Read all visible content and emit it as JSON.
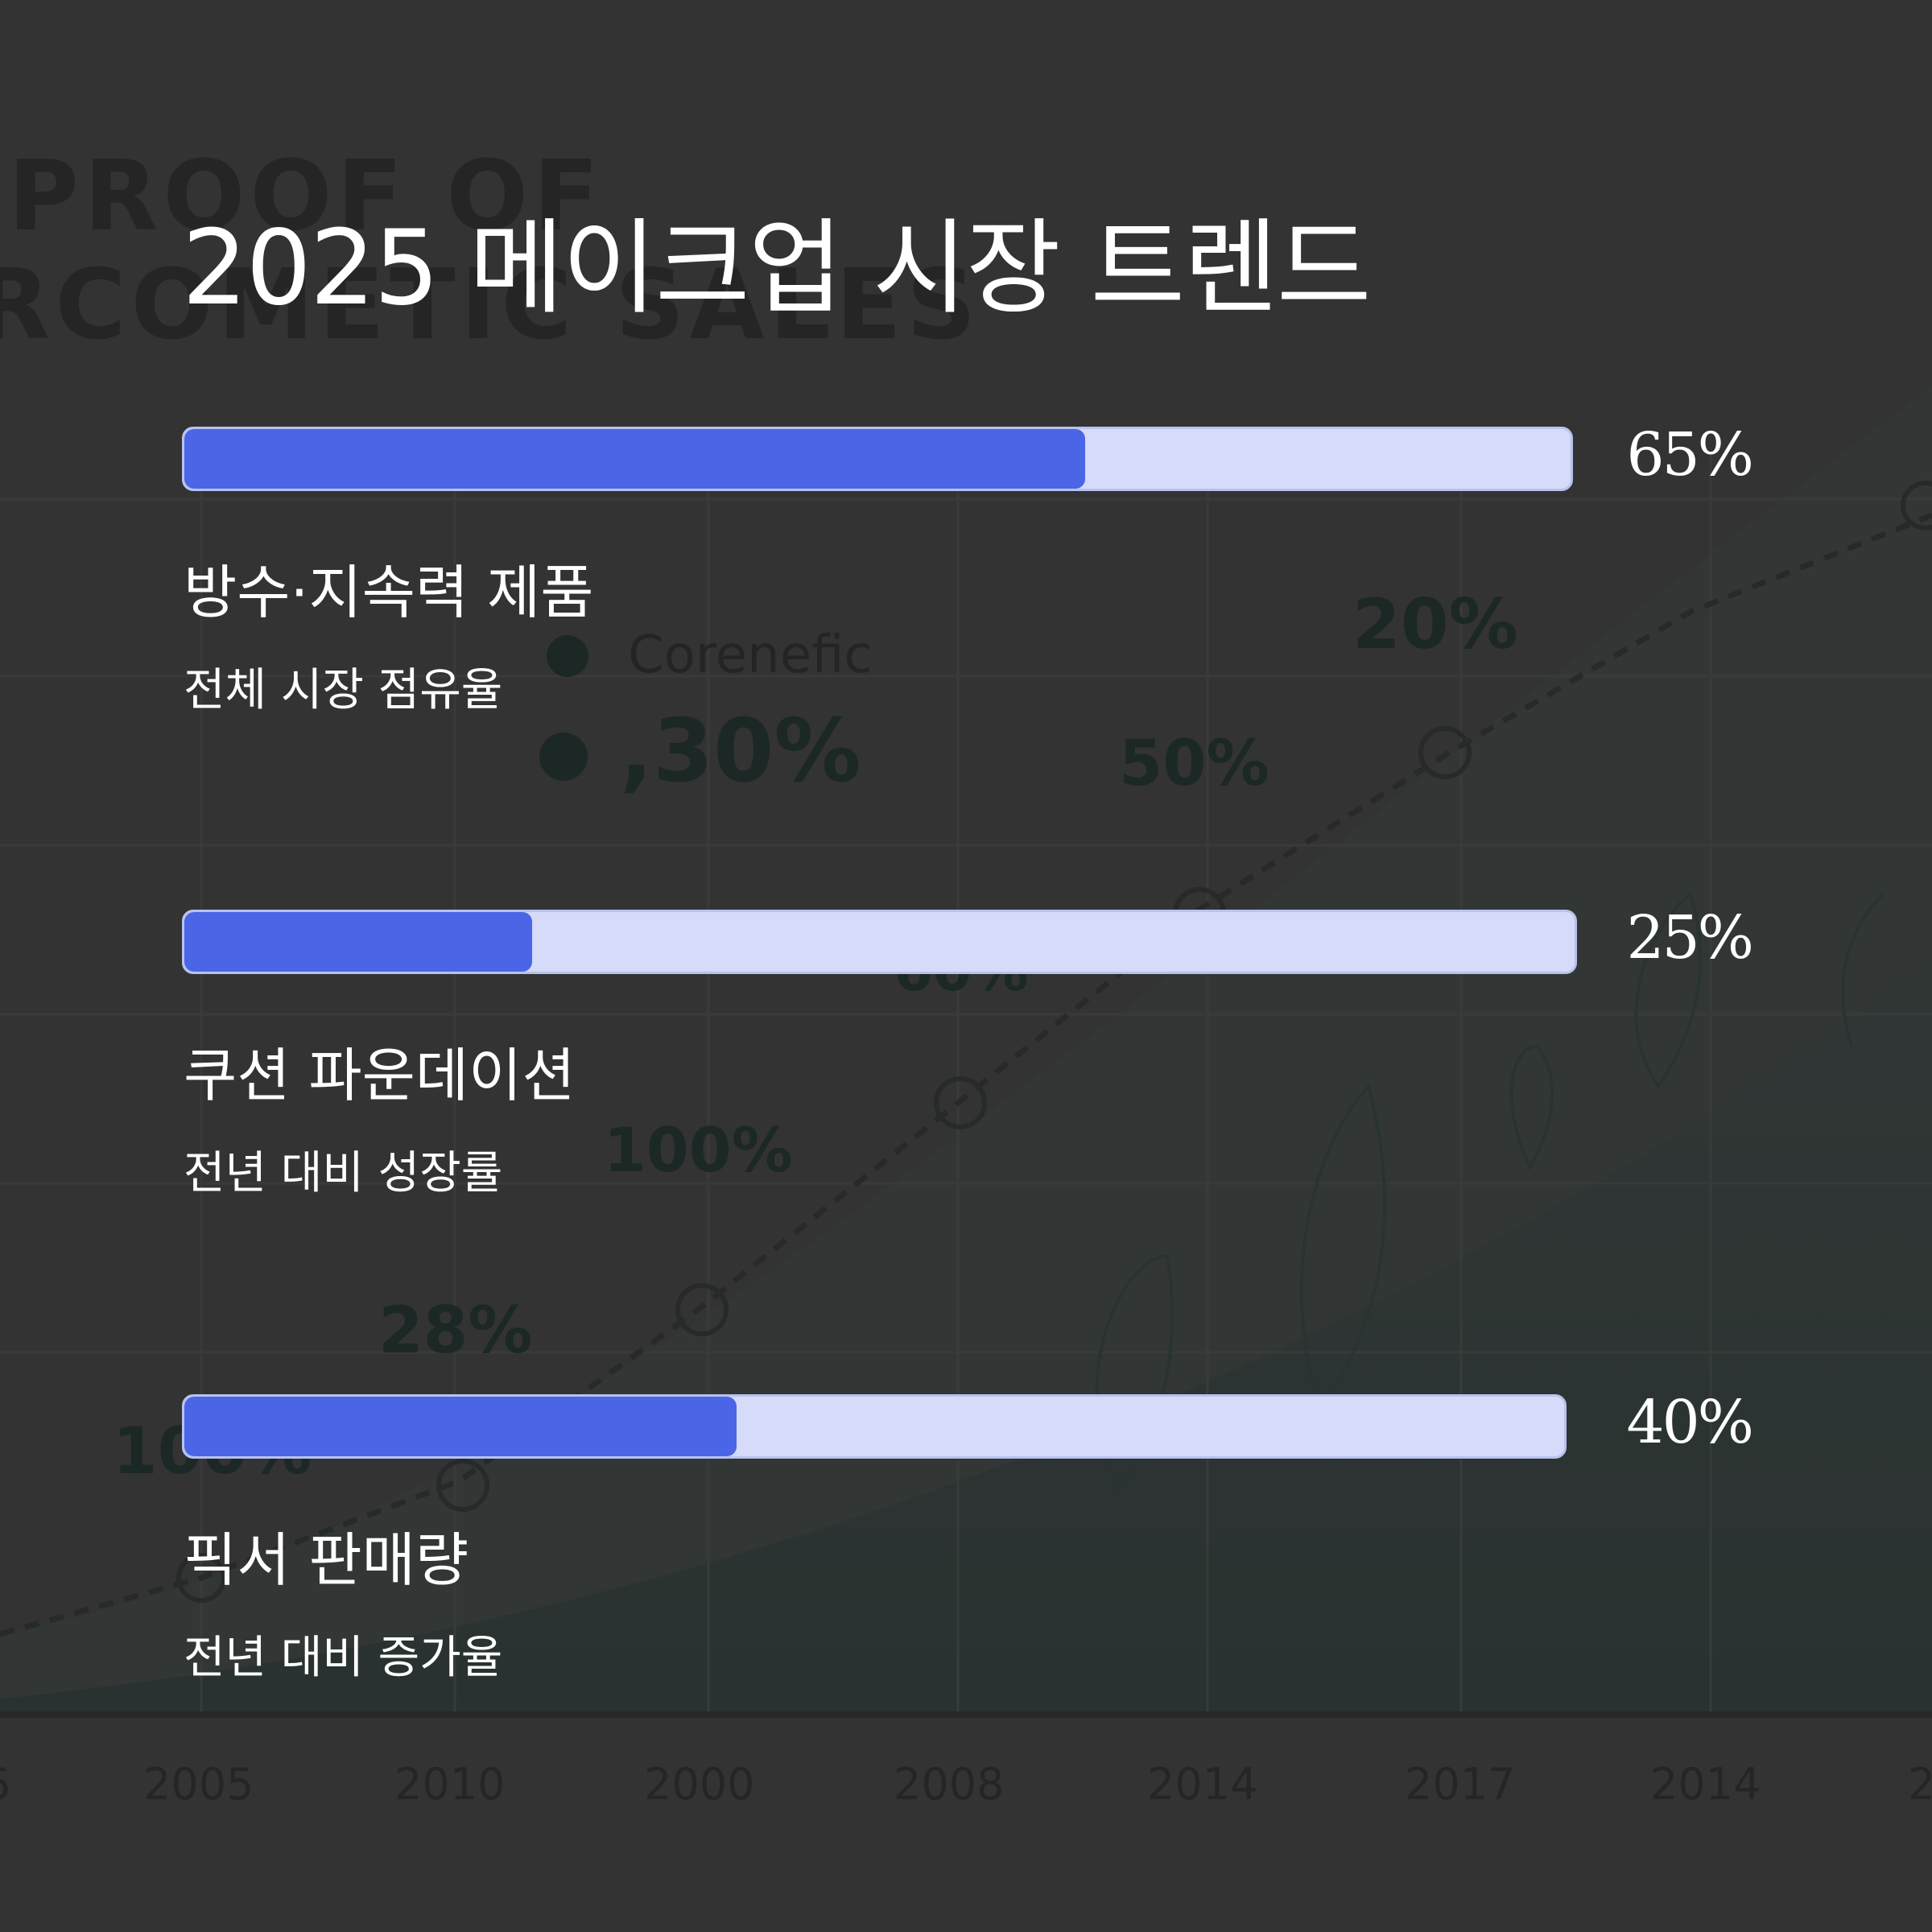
{
  "title": "2025 메이크업 시장 트렌드",
  "metrics": [
    {
      "percent_label": "65%",
      "value": 65,
      "name": "방수·지속력 제품",
      "description": "전체 시장 점유율"
    },
    {
      "percent_label": "25%",
      "value": 25,
      "name": "쿠션 파운데이션",
      "description": "전년 대비 성장률"
    },
    {
      "percent_label": "40%",
      "value": 40,
      "name": "픽서 판매량",
      "description": "전년 대비 증가율"
    }
  ],
  "background": {
    "heading_lines": [
      "PROOF OF",
      "RCOMETIC SALES"
    ],
    "legend_label": "Corenefic",
    "value_labels": [
      "20%",
      ",30%",
      "50%",
      "100%",
      "28%",
      "100%",
      "60%"
    ],
    "x_ticks": [
      "5",
      "2005",
      "2010",
      "2000",
      "2008",
      "2014",
      "2017",
      "2014",
      "2"
    ]
  },
  "colors": {
    "background": "#343434",
    "bar_fill": "#4a66e6",
    "bar_track": "#d5dbf8",
    "text": "#ffffff",
    "bg_chart_text": "#10231f"
  }
}
